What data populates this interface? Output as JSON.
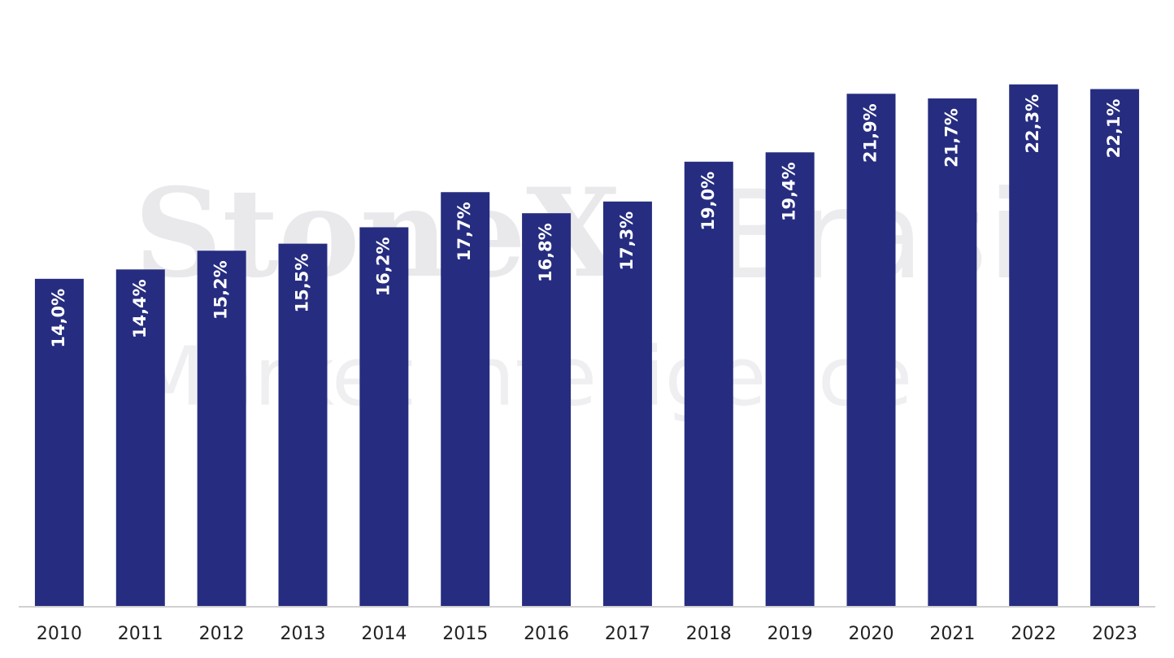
{
  "chart_data": {
    "type": "bar",
    "watermark": {
      "brand": "StoneX",
      "region": "Brasil",
      "tagline": "Market Intelligence"
    },
    "categories": [
      "2010",
      "2011",
      "2012",
      "2013",
      "2014",
      "2015",
      "2016",
      "2017",
      "2018",
      "2019",
      "2020",
      "2021",
      "2022",
      "2023"
    ],
    "values": [
      14.0,
      14.4,
      15.2,
      15.5,
      16.2,
      17.7,
      16.8,
      17.3,
      19.0,
      19.4,
      21.9,
      21.7,
      22.3,
      22.1
    ],
    "value_labels": [
      "14,0%",
      "14,4%",
      "15,2%",
      "15,5%",
      "16,2%",
      "17,7%",
      "16,8%",
      "17,3%",
      "19,0%",
      "19,4%",
      "21,9%",
      "21,7%",
      "22,3%",
      "22,1%"
    ],
    "color": "#262d80",
    "ylim": [
      0,
      25
    ]
  }
}
